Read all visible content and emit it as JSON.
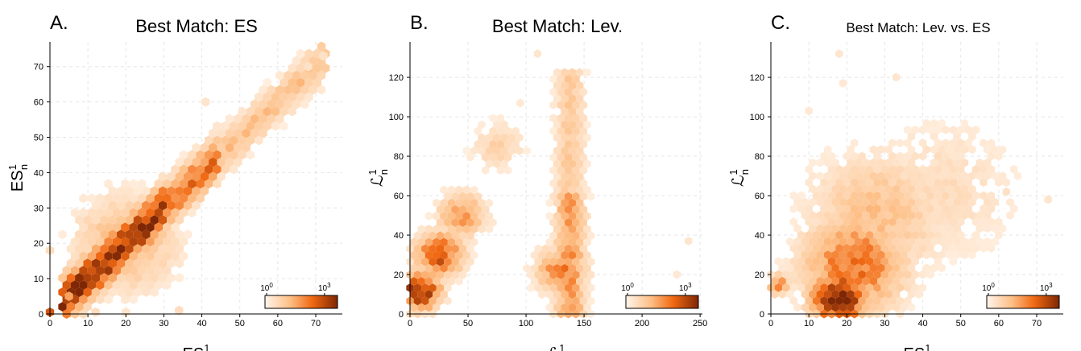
{
  "colors": {
    "cmap_low": "#fff5eb",
    "cmap_mid": "#fd8d3c",
    "cmap_high": "#7f2704",
    "grid": "#dcdcdc"
  },
  "chart_data": [
    {
      "type": "heatmap",
      "kind": "hexbin",
      "panel_letter": "A.",
      "title": "Best Match: ES",
      "xlabel": "ES",
      "xlabel_super": "1",
      "ylabel": "ES",
      "ylabel_super": "1",
      "ylabel_sub": "n",
      "xlim": [
        0,
        77
      ],
      "ylim": [
        0,
        77
      ],
      "xticks": [
        0,
        10,
        20,
        30,
        40,
        50,
        60,
        70
      ],
      "yticks": [
        0,
        10,
        20,
        30,
        40,
        50,
        60,
        70
      ],
      "grid": true,
      "colorbar": {
        "scale": "log",
        "ticks": [
          "10",
          "10"
        ],
        "tick_exponents": [
          "0",
          "3"
        ],
        "placement": "bottom-right"
      },
      "cell_size_x": 2.2,
      "density": [
        {
          "x": 0,
          "y": 0,
          "w": 0.0,
          "xs": 0.0
        },
        {
          "x": 10,
          "y": 10,
          "w": 0.55,
          "xs": 3.0
        },
        {
          "x": 17,
          "y": 17,
          "w": 0.9,
          "xs": 3.5
        },
        {
          "x": 24,
          "y": 24,
          "w": 0.75,
          "xs": 3.5
        },
        {
          "x": 32,
          "y": 32,
          "w": 0.55,
          "xs": 3.0
        },
        {
          "x": 42,
          "y": 42,
          "w": 0.35,
          "xs": 2.0
        },
        {
          "x": 55,
          "y": 54,
          "w": 0.2,
          "xs": 1.5
        },
        {
          "x": 20,
          "y": 20,
          "w": 0.35,
          "xs": 9.0
        }
      ],
      "diag_tail_to": 73,
      "extra_points": [
        [
          0,
          0.5,
          0.75
        ],
        [
          0,
          18,
          0.15
        ],
        [
          72,
          73,
          0.12
        ],
        [
          68,
          70,
          0.12
        ],
        [
          41,
          60,
          0.1
        ],
        [
          34,
          1,
          0.15
        ],
        [
          12,
          0.5,
          0.15
        ],
        [
          20,
          0.5,
          0.1
        ],
        [
          5,
          5,
          0.45
        ]
      ]
    },
    {
      "type": "heatmap",
      "kind": "hexbin",
      "panel_letter": "B.",
      "title": "Best Match: Lev.",
      "xlabel": "ℒ",
      "xlabel_super": "1",
      "ylabel": "ℒ",
      "ylabel_super": "1",
      "ylabel_sub": "n",
      "xlim": [
        0,
        252
      ],
      "ylim": [
        0,
        138
      ],
      "xticks": [
        0,
        50,
        100,
        150,
        200,
        250
      ],
      "yticks": [
        0,
        20,
        40,
        60,
        80,
        100,
        120
      ],
      "grid": true,
      "colorbar": {
        "scale": "log",
        "ticks": [
          "10",
          "10"
        ],
        "tick_exponents": [
          "0",
          "3"
        ],
        "placement": "bottom-right"
      },
      "cell_size_x": 6.5,
      "density": [
        {
          "x": 8,
          "y": 12,
          "w": 0.95,
          "xs": 12.0
        },
        {
          "x": 25,
          "y": 30,
          "w": 0.7,
          "xs": 14.0
        },
        {
          "x": 45,
          "y": 50,
          "w": 0.45,
          "xs": 14.0
        },
        {
          "x": 75,
          "y": 85,
          "w": 0.2,
          "xs": 16.0
        },
        {
          "x": 130,
          "y": 22,
          "w": 0.55,
          "xs": 14.0
        },
        {
          "x": 140,
          "y": 70,
          "w": 0.2,
          "xs": 6.0
        }
      ],
      "diag_tail_to": 0,
      "extra_points": [
        [
          110,
          132,
          0.1
        ],
        [
          240,
          37,
          0.1
        ],
        [
          230,
          20,
          0.08
        ],
        [
          95,
          107,
          0.08
        ]
      ]
    },
    {
      "type": "heatmap",
      "kind": "hexbin",
      "panel_letter": "C.",
      "title": "Best Match: Lev. vs. ES",
      "xlabel": "ES",
      "xlabel_super": "1",
      "ylabel": "ℒ",
      "ylabel_super": "1",
      "ylabel_sub": "n",
      "xlim": [
        0,
        77
      ],
      "ylim": [
        0,
        138
      ],
      "xticks": [
        0,
        10,
        20,
        30,
        40,
        50,
        60,
        70
      ],
      "yticks": [
        0,
        20,
        40,
        60,
        80,
        100,
        120
      ],
      "grid": true,
      "colorbar": {
        "scale": "log",
        "ticks": [
          "10",
          "10"
        ],
        "tick_exponents": [
          "0",
          "3"
        ],
        "placement": "bottom-right"
      },
      "cell_size_x": 2.0,
      "density": [
        {
          "x": 18,
          "y": 8,
          "w": 1.0,
          "xs": 5.0
        },
        {
          "x": 22,
          "y": 25,
          "w": 0.6,
          "xs": 9.0
        },
        {
          "x": 28,
          "y": 50,
          "w": 0.3,
          "xs": 12.0
        },
        {
          "x": 45,
          "y": 62,
          "w": 0.15,
          "xs": 14.0
        },
        {
          "x": 2,
          "y": 15,
          "w": 0.5,
          "xs": 2.0
        }
      ],
      "diag_tail_to": 0,
      "extra_points": [
        [
          18,
          132,
          0.1
        ],
        [
          33,
          120,
          0.1
        ],
        [
          62,
          62,
          0.12
        ],
        [
          73,
          58,
          0.1
        ],
        [
          10,
          103,
          0.08
        ],
        [
          19,
          117,
          0.08
        ]
      ]
    }
  ]
}
